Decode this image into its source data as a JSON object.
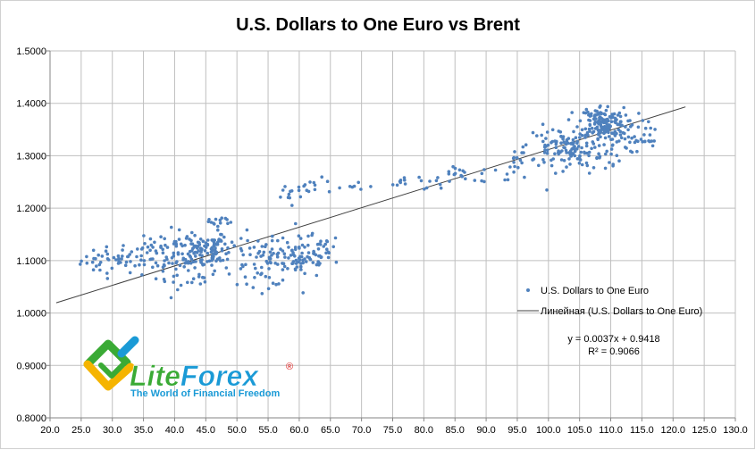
{
  "chart_data": {
    "type": "scatter",
    "title": "U.S. Dollars to One Euro vs Brent",
    "xlabel": "",
    "ylabel": "",
    "xlim": [
      20.0,
      130.0
    ],
    "ylim": [
      0.8,
      1.5
    ],
    "x_ticks": [
      "20.0",
      "25.0",
      "30.0",
      "35.0",
      "40.0",
      "45.0",
      "50.0",
      "55.0",
      "60.0",
      "65.0",
      "70.0",
      "75.0",
      "80.0",
      "85.0",
      "90.0",
      "95.0",
      "100.0",
      "105.0",
      "110.0",
      "115.0",
      "120.0",
      "125.0",
      "130.0"
    ],
    "y_ticks": [
      "0.8000",
      "0.9000",
      "1.0000",
      "1.1000",
      "1.2000",
      "1.3000",
      "1.4000",
      "1.5000"
    ],
    "grid": true,
    "series": [
      {
        "name": "U.S. Dollars to One Euro",
        "color": "#4f81bd",
        "clusters": [
          {
            "cx": 30.0,
            "cy": 1.1,
            "sx": 2.5,
            "sy": 0.013,
            "n": 40
          },
          {
            "cx": 36.5,
            "cy": 1.11,
            "sx": 2.3,
            "sy": 0.015,
            "n": 40
          },
          {
            "cx": 43.0,
            "cy": 1.12,
            "sx": 3.0,
            "sy": 0.02,
            "n": 90
          },
          {
            "cx": 46.5,
            "cy": 1.12,
            "sx": 2.5,
            "sy": 0.022,
            "n": 70
          },
          {
            "cx": 42.0,
            "cy": 1.07,
            "sx": 2.5,
            "sy": 0.012,
            "n": 25
          },
          {
            "cx": 47.0,
            "cy": 1.175,
            "sx": 1.5,
            "sy": 0.008,
            "n": 12
          },
          {
            "cx": 55.0,
            "cy": 1.095,
            "sx": 2.5,
            "sy": 0.022,
            "n": 60
          },
          {
            "cx": 60.5,
            "cy": 1.105,
            "sx": 2.5,
            "sy": 0.02,
            "n": 60
          },
          {
            "cx": 63.0,
            "cy": 1.12,
            "sx": 2.0,
            "sy": 0.015,
            "n": 25
          },
          {
            "cx": 58.5,
            "cy": 1.225,
            "sx": 1.5,
            "sy": 0.012,
            "n": 12
          },
          {
            "cx": 63.0,
            "cy": 1.24,
            "sx": 2.0,
            "sy": 0.008,
            "n": 12
          },
          {
            "cx": 69.0,
            "cy": 1.24,
            "sx": 2.5,
            "sy": 0.007,
            "n": 8
          },
          {
            "cx": 77.0,
            "cy": 1.25,
            "sx": 0.8,
            "sy": 0.006,
            "n": 6
          },
          {
            "cx": 82.0,
            "cy": 1.25,
            "sx": 1.8,
            "sy": 0.008,
            "n": 12
          },
          {
            "cx": 85.0,
            "cy": 1.273,
            "sx": 1.0,
            "sy": 0.006,
            "n": 10
          },
          {
            "cx": 89.5,
            "cy": 1.262,
            "sx": 1.5,
            "sy": 0.008,
            "n": 8
          },
          {
            "cx": 95.5,
            "cy": 1.285,
            "sx": 1.5,
            "sy": 0.015,
            "n": 20
          },
          {
            "cx": 101.0,
            "cy": 1.315,
            "sx": 2.2,
            "sy": 0.02,
            "n": 60
          },
          {
            "cx": 104.0,
            "cy": 1.31,
            "sx": 2.0,
            "sy": 0.015,
            "n": 40
          },
          {
            "cx": 108.5,
            "cy": 1.365,
            "sx": 1.8,
            "sy": 0.016,
            "n": 130
          },
          {
            "cx": 110.5,
            "cy": 1.345,
            "sx": 2.5,
            "sy": 0.02,
            "n": 60
          },
          {
            "cx": 107.5,
            "cy": 1.3,
            "sx": 2.0,
            "sy": 0.015,
            "n": 30
          },
          {
            "cx": 115.0,
            "cy": 1.33,
            "sx": 1.5,
            "sy": 0.01,
            "n": 15
          }
        ]
      }
    ],
    "trendline": {
      "name": "Линейная (U.S. Dollars to One Euro)",
      "type": "linear",
      "slope": 0.0037,
      "intercept": 0.9418,
      "x_range": [
        21.0,
        122.0
      ],
      "color": "#404040"
    },
    "equation_text": "y = 0.0037x + 0.9418",
    "r2_text": "R² = 0.9066",
    "legend_position": "right"
  },
  "logo": {
    "name_part1": "Lite",
    "name_part2": "Forex",
    "registered_mark": "®",
    "tagline": "The World of Financial Freedom",
    "green": "#3aaa35",
    "blue": "#1a9ad6",
    "yellow": "#f5b400"
  },
  "colors": {
    "point": "#4f81bd",
    "grid": "#bfbfbf",
    "axis": "#868686",
    "trend": "#404040"
  }
}
